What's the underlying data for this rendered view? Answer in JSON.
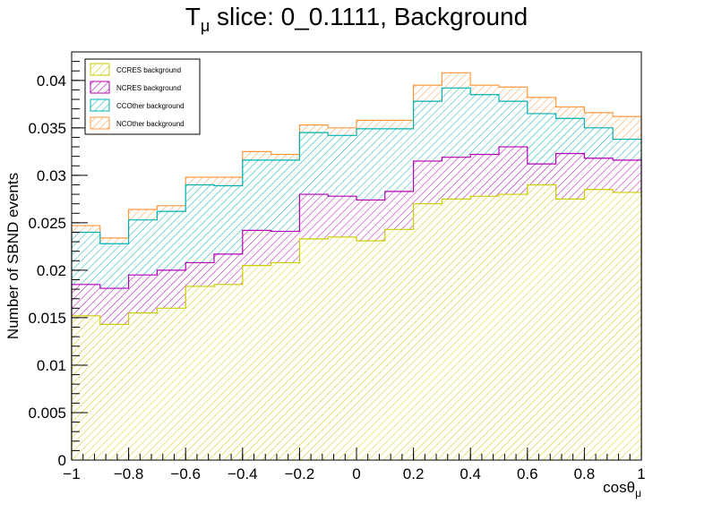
{
  "chart_data": {
    "type": "histogram-stacked",
    "title_main": "T",
    "title_sub": "μ",
    "title_rest": " slice: 0_0.1111, Background",
    "ylabel": "Number of SBND events",
    "xlabel_main": "cosθ",
    "xlabel_sub": "μ",
    "xlim": [
      -1,
      1
    ],
    "ylim": [
      0,
      0.043
    ],
    "x_ticks": [
      -1,
      -0.8,
      -0.6,
      -0.4,
      -0.2,
      0,
      0.2,
      0.4,
      0.6,
      0.8,
      1
    ],
    "x_tick_labels": [
      "−1",
      "−0.8",
      "−0.6",
      "−0.4",
      "−0.2",
      "0",
      "0.2",
      "0.4",
      "0.6",
      "0.8",
      "1"
    ],
    "y_ticks": [
      0,
      0.005,
      0.01,
      0.015,
      0.02,
      0.025,
      0.03,
      0.035,
      0.04
    ],
    "y_tick_labels": [
      "0",
      "0.005",
      "0.01",
      "0.015",
      "0.02",
      "0.025",
      "0.03",
      "0.035",
      "0.04"
    ],
    "bin_edges": [
      -1,
      -0.9,
      -0.8,
      -0.7,
      -0.6,
      -0.5,
      -0.4,
      -0.3,
      -0.2,
      -0.1,
      0,
      0.1,
      0.2,
      0.3,
      0.4,
      0.5,
      0.6,
      0.7,
      0.8,
      0.9,
      1
    ],
    "legend_position": "top-left",
    "series": [
      {
        "name": "CCRES background",
        "color": "#cccc00",
        "values": [
          0.0152,
          0.0143,
          0.0155,
          0.016,
          0.0183,
          0.0185,
          0.0205,
          0.0208,
          0.0233,
          0.0235,
          0.0231,
          0.0243,
          0.027,
          0.0275,
          0.0278,
          0.028,
          0.029,
          0.0275,
          0.0285,
          0.0282
        ]
      },
      {
        "name": "NCRES background",
        "color": "#b000b0",
        "values": [
          0.0033,
          0.0038,
          0.004,
          0.004,
          0.0025,
          0.0032,
          0.0037,
          0.0033,
          0.0047,
          0.0043,
          0.0043,
          0.004,
          0.0045,
          0.0044,
          0.0044,
          0.005,
          0.0022,
          0.0048,
          0.0033,
          0.0034
        ]
      },
      {
        "name": "CCOther background",
        "color": "#00b0b0",
        "values": [
          0.0055,
          0.0047,
          0.0058,
          0.0062,
          0.0082,
          0.0072,
          0.0074,
          0.0075,
          0.0065,
          0.0064,
          0.0075,
          0.0066,
          0.0063,
          0.0073,
          0.0063,
          0.0048,
          0.0053,
          0.0037,
          0.0032,
          0.0022
        ]
      },
      {
        "name": "NCOther background",
        "color": "#ff9940",
        "values": [
          0.0007,
          0.0006,
          0.0011,
          0.0006,
          0.0008,
          0.0009,
          0.0009,
          0.0006,
          0.0008,
          0.0008,
          0.0009,
          0.0009,
          0.0017,
          0.0016,
          0.001,
          0.0015,
          0.0017,
          0.0012,
          0.0016,
          0.0024
        ]
      }
    ]
  }
}
